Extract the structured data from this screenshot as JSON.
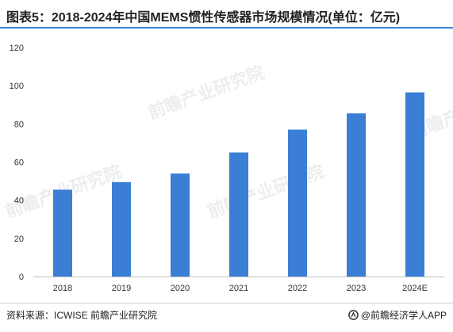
{
  "header": {
    "title": "图表5：2018-2024年中国MEMS惯性传感器市场规模情况(单位：亿元)"
  },
  "footer": {
    "source": "资料来源：ICWISE 前瞻产业研究院",
    "brand": "@前瞻经济学人APP"
  },
  "watermark": {
    "text": "前瞻产业研究院"
  },
  "chart_data": {
    "type": "bar",
    "categories": [
      "2018",
      "2019",
      "2020",
      "2021",
      "2022",
      "2023",
      "2024E"
    ],
    "values": [
      45.5,
      49.5,
      54,
      65,
      77,
      85.5,
      96.5
    ],
    "title": "图表5：2018-2024年中国MEMS惯性传感器市场规模情况(单位：亿元)",
    "xlabel": "",
    "ylabel": "",
    "ylim": [
      0,
      120
    ],
    "yticks": [
      0,
      20,
      40,
      60,
      80,
      100,
      120
    ],
    "grid": false,
    "legend": "none",
    "bar_color": "#3a7fd5"
  }
}
